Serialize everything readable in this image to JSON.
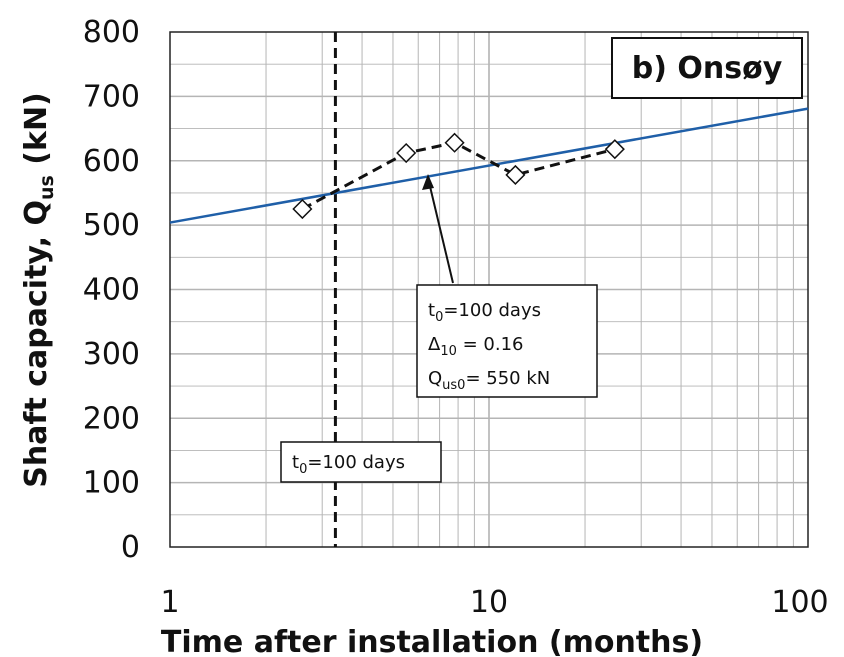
{
  "chart_data": {
    "type": "scatter",
    "panel_label": "b) Onsøy",
    "xlabel": "Time after installation (months)",
    "ylabel": {
      "main": "Shaft capacity, Q",
      "sub": "us",
      "unit": " (kN)"
    },
    "x_scale": "log",
    "xlim": [
      1,
      100
    ],
    "ylim": [
      0,
      800
    ],
    "x_ticks": [
      "1",
      "10",
      "100"
    ],
    "y_ticks": [
      "0",
      "100",
      "200",
      "300",
      "400",
      "500",
      "600",
      "700",
      "800"
    ],
    "grid": true,
    "series": [
      {
        "style": "dashed-black-diamond-markers",
        "x": [
          2.6,
          5.5,
          7.8,
          12.1,
          24.8
        ],
        "y": [
          525,
          612,
          628,
          578,
          618
        ]
      },
      {
        "style": "solid-blue-line",
        "x": [
          1,
          100
        ],
        "y": [
          504,
          681
        ]
      }
    ],
    "vertical_line": {
      "x": 3.3,
      "style": "dashed-black"
    },
    "annotations": [
      {
        "id": "t0-box",
        "lines": [
          {
            "main": "t",
            "sub": "0",
            "rest": "=100 days"
          }
        ]
      },
      {
        "id": "fit-box",
        "lines": [
          {
            "main": "t",
            "sub": "0",
            "rest": "=100 days"
          },
          {
            "main": "Δ",
            "sub": "10",
            "rest": " = 0.16"
          },
          {
            "main": "Q",
            "sub": "us0",
            "rest": "= 550 kN"
          }
        ]
      }
    ],
    "colors": {
      "fit_line": "#1f5fa8",
      "measured": "#111111",
      "grid": "#b5b5b5"
    }
  }
}
